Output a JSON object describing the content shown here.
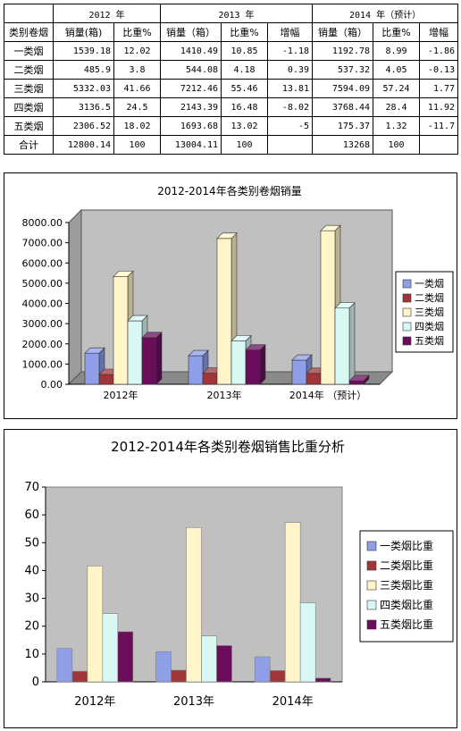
{
  "table": {
    "year_headers": [
      "2012 年",
      "2013 年",
      "2014 年（预计）"
    ],
    "sub_headers": [
      "类别卷烟",
      "销量(箱)",
      "比重%",
      "销量（箱）",
      "比重%",
      "增幅",
      "销量（箱）",
      "比重%",
      "增幅"
    ],
    "rows": [
      [
        "一类烟",
        "1539.18",
        "12.02",
        "1410.49",
        "10.85",
        "-1.18",
        "1192.78",
        "8.99",
        "-1.86"
      ],
      [
        "二类烟",
        "485.9",
        "3.8",
        "544.08",
        "4.18",
        "0.39",
        "537.32",
        "4.05",
        "-0.13"
      ],
      [
        "三类烟",
        "5332.03",
        "41.66",
        "7212.46",
        "55.46",
        "13.81",
        "7594.09",
        "57.24",
        "1.77"
      ],
      [
        "四类烟",
        "3136.5",
        "24.5",
        "2143.39",
        "16.48",
        "-8.02",
        "3768.44",
        "28.4",
        "11.92"
      ],
      [
        "五类烟",
        "2306.52",
        "18.02",
        "1693.68",
        "13.02",
        "-5",
        "175.37",
        "1.32",
        "-11.7"
      ],
      [
        "合计",
        "12800.14",
        "100",
        "13004.11",
        "100",
        "",
        "13268",
        "100",
        ""
      ]
    ]
  },
  "colors": [
    "#8e9fe8",
    "#a0363a",
    "#fff5c8",
    "#d8f8f6",
    "#6a0e5c"
  ],
  "chart_data": [
    {
      "type": "bar",
      "title": "2012-2014年各类别卷烟销量",
      "categories": [
        "2012年",
        "2013年",
        "2014年 （预计）"
      ],
      "series": [
        {
          "name": "一类烟",
          "values": [
            1539.18,
            1410.49,
            1192.78
          ]
        },
        {
          "name": "二类烟",
          "values": [
            485.9,
            544.08,
            537.32
          ]
        },
        {
          "name": "三类烟",
          "values": [
            5332.03,
            7212.46,
            7594.09
          ]
        },
        {
          "name": "四类烟",
          "values": [
            3136.5,
            2143.39,
            3768.44
          ]
        },
        {
          "name": "五类烟",
          "values": [
            2306.52,
            1693.68,
            175.37
          ]
        }
      ],
      "yticks": [
        "0.00",
        "1000.00",
        "2000.00",
        "3000.00",
        "4000.00",
        "5000.00",
        "6000.00",
        "7000.00",
        "8000.00"
      ],
      "ylim": [
        0,
        8000
      ],
      "grid": false,
      "legend_position": "right",
      "style": "3d"
    },
    {
      "type": "bar",
      "title": "2012-2014年各类别卷烟销售比重分析",
      "categories": [
        "2012年",
        "2013年",
        "2014年"
      ],
      "series": [
        {
          "name": "一类烟比重",
          "values": [
            12.02,
            10.85,
            8.99
          ]
        },
        {
          "name": "二类烟比重",
          "values": [
            3.8,
            4.18,
            4.05
          ]
        },
        {
          "name": "三类烟比重",
          "values": [
            41.66,
            55.46,
            57.24
          ]
        },
        {
          "name": "四类烟比重",
          "values": [
            24.5,
            16.48,
            28.4
          ]
        },
        {
          "name": "五类烟比重",
          "values": [
            18.02,
            13.02,
            1.32
          ]
        }
      ],
      "yticks": [
        "0",
        "10",
        "20",
        "30",
        "40",
        "50",
        "60",
        "70"
      ],
      "ylim": [
        0,
        70
      ],
      "grid": false,
      "legend_position": "right",
      "style": "flat"
    }
  ]
}
